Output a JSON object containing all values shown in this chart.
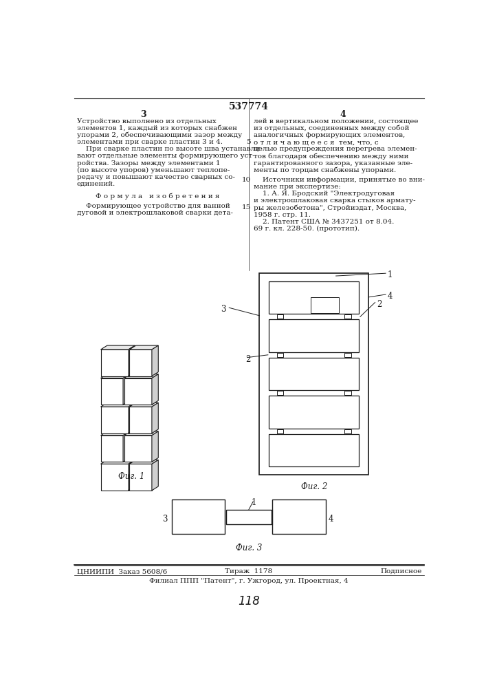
{
  "patent_number": "537774",
  "page_left": "3",
  "page_right": "4",
  "fig1_label": "Фиг. 1",
  "fig2_label": "Фиг. 2",
  "fig3_label": "Фиг. 3",
  "footer_left": "ЦНИИПИ  Заказ 5608/6",
  "footer_center": "Тираж  1178",
  "footer_right": "Подписное",
  "footer_sub": "Филиал ППП \"Патент\", г. Ужгород, ул. Проектная, 4",
  "page_num": "118",
  "bg_color": "#ffffff",
  "text_color": "#1a1a1a",
  "line_color": "#1a1a1a",
  "left_col_lines": [
    "Устройство выполнено из отдельных",
    "элементов 1, каждый из которых снабжен",
    "упорами 2, обеспечивающими зазор между",
    "элементами при сварке пластин 3 и 4.",
    "    При сварке пластин по высоте шва устанавли-",
    "вают отдельные элементы формирующего уст-",
    "ройства. Зазоры между элементами 1",
    "(по высоте упоров) уменьшают теплопе-",
    "редачу и повышают качество сварных со-",
    "единений."
  ],
  "formula_header": "Ф о р м у л а   и з о б р е т е н и я",
  "formula_lines": [
    "    Формирующее устройство для ванной",
    "дуговой и электрошлаковой сварки дета-"
  ],
  "right_col_lines": [
    "лей в вертикальном положении, состоящее",
    "из отдельных, соединенных между собой",
    "аналогичных формирующих элементов,",
    "о т л и ч а ю щ е е с я  тем, что, с",
    "целью предупреждения перегрева элемен-",
    "тов благодаря обеспечению между ними",
    "гарантированного зазора, указанные эле-",
    "менты по торцам снабжены упорами."
  ],
  "src_line0": "    Источники информации, принятые во вни-",
  "src_line1": "мание при экспертизе:",
  "src_lines": [
    "    1. А. Я. Бродский \"Электродуговая",
    "и электрошлаковая сварка стыков армату-",
    "ры железобетона\", Стройиздат, Москва,",
    "1958 г. стр. 11.",
    "    2. Патент США № 3437251 от 8.04.",
    "69 г. кл. 228-50. (прототип)."
  ]
}
